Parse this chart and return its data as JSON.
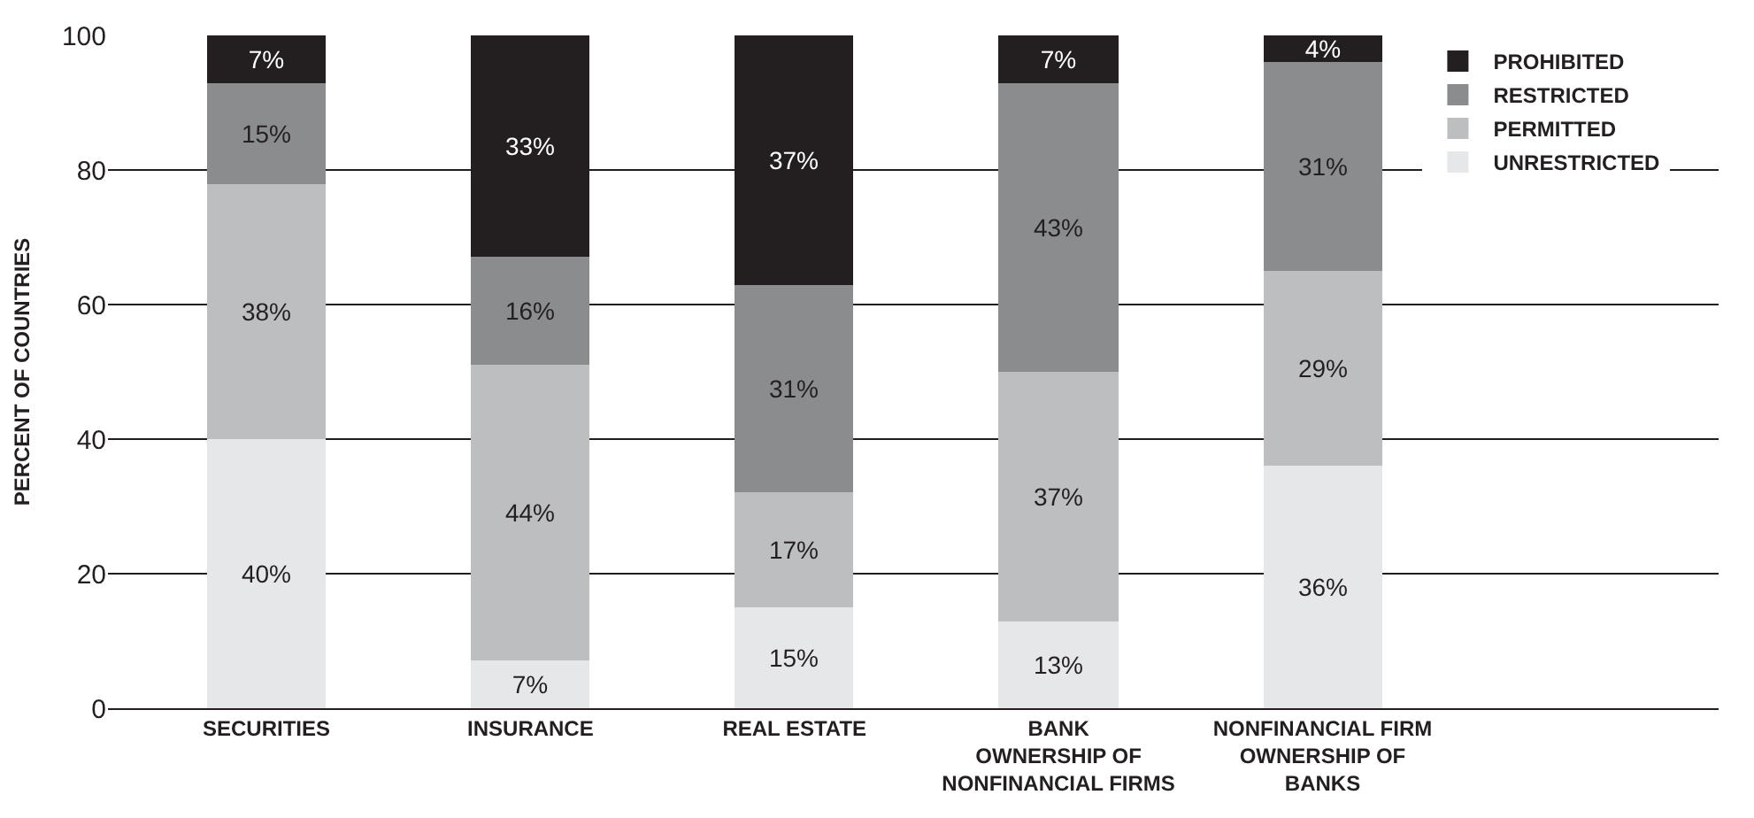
{
  "chart_data": {
    "type": "bar",
    "stacked": true,
    "ylabel": "PERCENT OF COUNTRIES",
    "categories": [
      "SECURITIES",
      "INSURANCE",
      "REAL ESTATE",
      "BANK\nOWNERSHIP OF\nNONFINANCIAL FIRMS",
      "NONFINANCIAL FIRM\nOWNERSHIP OF\nBANKS"
    ],
    "series": [
      {
        "name": "UNRESTRICTED",
        "color": "#e6e7e8",
        "values": [
          40,
          7,
          15,
          13,
          36
        ],
        "value_labels": [
          "40%",
          "7%",
          "15%",
          "13%",
          "36%"
        ]
      },
      {
        "name": "PERMITTED",
        "color": "#bcbec0",
        "values": [
          38,
          44,
          17,
          37,
          29
        ],
        "value_labels": [
          "38%",
          "44%",
          "17%",
          "37%",
          "29%"
        ]
      },
      {
        "name": "RESTRICTED",
        "color": "#8a8c8e",
        "values": [
          15,
          16,
          31,
          43,
          31
        ],
        "value_labels": [
          "15%",
          "16%",
          "31%",
          "43%",
          "31%"
        ]
      },
      {
        "name": "PROHIBITED",
        "color": "#231f20",
        "values": [
          7,
          33,
          37,
          7,
          4
        ],
        "value_labels": [
          "7%",
          "33%",
          "37%",
          "7%",
          "4%"
        ]
      }
    ],
    "ylim": [
      0,
      100
    ],
    "yticks": [
      0,
      20,
      40,
      60,
      80,
      100
    ],
    "grid": "y",
    "legend": "right"
  }
}
